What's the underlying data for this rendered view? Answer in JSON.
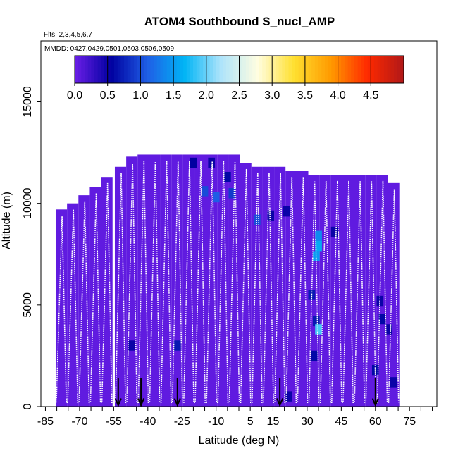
{
  "chart_data": {
    "type": "heatmap",
    "title": "ATOM4 Southbound S_nucl_AMP",
    "flights_note": "Flts: 2,3,4,5,6,7",
    "dates_note": "MMDD: 0427,0429,0501,0503,0506,0509",
    "xlabel": "Latitude (deg N)",
    "ylabel": "Altitude (m)",
    "xlim": [
      -87,
      87
    ],
    "ylim": [
      0,
      18000
    ],
    "x_ticks": [
      -85,
      -70,
      -55,
      -40,
      -25,
      -10,
      5,
      15,
      30,
      45,
      60,
      75
    ],
    "x_tick_labels": [
      "-85",
      "-70",
      "-55",
      "-40",
      "-25",
      "-10",
      "5",
      "15",
      "30",
      "45",
      "60",
      "75"
    ],
    "y_ticks": [
      0,
      5000,
      10000,
      15000
    ],
    "y_tick_labels": [
      "0",
      "5000",
      "10000",
      "15000"
    ],
    "colorbar": {
      "range": [
        0,
        5
      ],
      "tick_values": [
        0,
        0.5,
        1.0,
        1.5,
        2.0,
        2.5,
        3.0,
        3.5,
        4.0,
        4.5
      ],
      "tick_labels": [
        "0.0",
        "0.5",
        "1.0",
        "1.5",
        "2.0",
        "2.5",
        "3.0",
        "3.5",
        "4.0",
        "4.5"
      ],
      "colors": [
        "#6a1ee6",
        "#0000a0",
        "#1f5fe6",
        "#00b4f5",
        "#aee4fb",
        "#fffde0",
        "#ffe030",
        "#ff9a00",
        "#ff2a00",
        "#b01818"
      ]
    },
    "coverage_top_by_lat": [
      [
        -78,
        9700
      ],
      [
        -73,
        10000
      ],
      [
        -68,
        10400
      ],
      [
        -63,
        10800
      ],
      [
        -58,
        11300
      ],
      [
        -52,
        11800
      ],
      [
        -47,
        12300
      ],
      [
        -42,
        12400
      ],
      [
        -37,
        12400
      ],
      [
        -32,
        12400
      ],
      [
        -27,
        12400
      ],
      [
        -22,
        12400
      ],
      [
        -17,
        12400
      ],
      [
        -12,
        12400
      ],
      [
        -7,
        12400
      ],
      [
        -2,
        12400
      ],
      [
        3,
        12000
      ],
      [
        8,
        11800
      ],
      [
        13,
        11800
      ],
      [
        18,
        11800
      ],
      [
        23,
        11600
      ],
      [
        28,
        11600
      ],
      [
        33,
        11400
      ],
      [
        38,
        11400
      ],
      [
        43,
        11400
      ],
      [
        48,
        11400
      ],
      [
        53,
        11400
      ],
      [
        58,
        11400
      ],
      [
        63,
        11400
      ],
      [
        68,
        11000
      ]
    ],
    "enhanced_cells": [
      {
        "lat": -20,
        "alt": 12000,
        "value": 0.55
      },
      {
        "lat": -12,
        "alt": 12000,
        "value": 0.5
      },
      {
        "lat": -5,
        "alt": 11300,
        "value": 0.6
      },
      {
        "lat": -15,
        "alt": 10600,
        "value": 1.0
      },
      {
        "lat": -10,
        "alt": 10300,
        "value": 1.1
      },
      {
        "lat": -3,
        "alt": 10500,
        "value": 0.9
      },
      {
        "lat": 8,
        "alt": 9200,
        "value": 1.0
      },
      {
        "lat": 14,
        "alt": 9400,
        "value": 0.5
      },
      {
        "lat": 21,
        "alt": 9600,
        "value": 0.5
      },
      {
        "lat": 35,
        "alt": 8400,
        "value": 1.4
      },
      {
        "lat": 35,
        "alt": 7900,
        "value": 1.6
      },
      {
        "lat": 34,
        "alt": 7400,
        "value": 1.5
      },
      {
        "lat": 32,
        "alt": 5500,
        "value": 0.7
      },
      {
        "lat": 34,
        "alt": 4200,
        "value": 0.7
      },
      {
        "lat": 35,
        "alt": 3800,
        "value": 1.9
      },
      {
        "lat": 33,
        "alt": 2500,
        "value": 0.6
      },
      {
        "lat": -47,
        "alt": 3000,
        "value": 0.5
      },
      {
        "lat": -27,
        "alt": 3000,
        "value": 0.7
      },
      {
        "lat": 42,
        "alt": 8600,
        "value": 0.5
      },
      {
        "lat": 63,
        "alt": 4300,
        "value": 0.6
      },
      {
        "lat": 66,
        "alt": 3800,
        "value": 0.5
      },
      {
        "lat": 62,
        "alt": 5200,
        "value": 0.5
      },
      {
        "lat": 68,
        "alt": 1200,
        "value": 0.5
      },
      {
        "lat": 22,
        "alt": 500,
        "value": 0.5
      },
      {
        "lat": 60,
        "alt": 1800,
        "value": 0.6
      }
    ],
    "arrow_lats": [
      -53,
      -43,
      -27,
      18,
      60
    ]
  }
}
